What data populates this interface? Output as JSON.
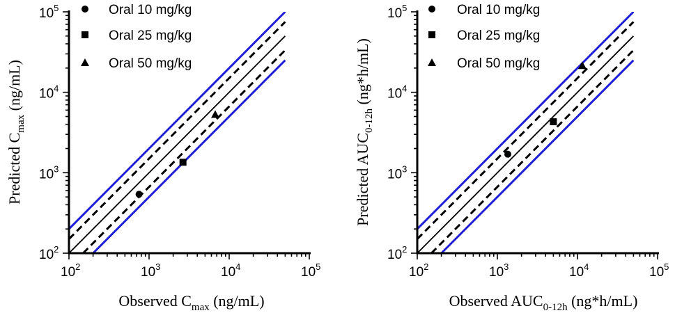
{
  "chart_data": [
    {
      "type": "scatter",
      "scale": "log10",
      "xlabel": "Observed C",
      "xlabel_sub": "max",
      "xlabel_unit": " (ng/mL)",
      "ylabel": "Predicted C",
      "ylabel_sub": "max",
      "ylabel_unit": " (ng/mL)",
      "xlim": [
        100,
        100000
      ],
      "ylim": [
        100,
        100000
      ],
      "tick_base": "10",
      "tick_exponents": [
        "2",
        "3",
        "4",
        "5"
      ],
      "legend_position": "top-left",
      "series": [
        {
          "name": "Oral 10 mg/kg",
          "marker": "circle",
          "x": 750,
          "y": 540
        },
        {
          "name": "Oral 25 mg/kg",
          "marker": "square",
          "x": 2650,
          "y": 1350
        },
        {
          "name": "Oral 50 mg/kg",
          "marker": "triangle",
          "x": 6700,
          "y": 5300
        }
      ],
      "reference_lines": [
        {
          "name": "line of unity",
          "fold": 1,
          "style": "solid",
          "color": "#000000"
        },
        {
          "name": "1.5-fold upper",
          "fold": 1.5,
          "style": "dashed",
          "color": "#000000"
        },
        {
          "name": "1.5-fold lower",
          "fold": 0.6667,
          "style": "dashed",
          "color": "#000000"
        },
        {
          "name": "2-fold upper",
          "fold": 2,
          "style": "solid",
          "color": "#1f1fd8"
        },
        {
          "name": "2-fold lower",
          "fold": 0.5,
          "style": "solid",
          "color": "#1f1fd8"
        }
      ]
    },
    {
      "type": "scatter",
      "scale": "log10",
      "xlabel": "Observed AUC",
      "xlabel_sub": "0-12h",
      "xlabel_unit": " (ng*h/mL)",
      "ylabel": "Predicted AUC",
      "ylabel_sub": "0-12h",
      "ylabel_unit": " (ng*h/mL)",
      "xlim": [
        100,
        100000
      ],
      "ylim": [
        100,
        100000
      ],
      "tick_base": "10",
      "tick_exponents": [
        "2",
        "3",
        "4",
        "5"
      ],
      "legend_position": "top-left",
      "series": [
        {
          "name": "Oral 10 mg/kg",
          "marker": "circle",
          "x": 1350,
          "y": 1700
        },
        {
          "name": "Oral 25 mg/kg",
          "marker": "square",
          "x": 5000,
          "y": 4300
        },
        {
          "name": "Oral 50 mg/kg",
          "marker": "triangle",
          "x": 11500,
          "y": 21500
        }
      ],
      "reference_lines": [
        {
          "name": "line of unity",
          "fold": 1,
          "style": "solid",
          "color": "#000000"
        },
        {
          "name": "1.5-fold upper",
          "fold": 1.5,
          "style": "dashed",
          "color": "#000000"
        },
        {
          "name": "1.5-fold lower",
          "fold": 0.6667,
          "style": "dashed",
          "color": "#000000"
        },
        {
          "name": "2-fold upper",
          "fold": 2,
          "style": "solid",
          "color": "#1f1fd8"
        },
        {
          "name": "2-fold lower",
          "fold": 0.5,
          "style": "solid",
          "color": "#1f1fd8"
        }
      ]
    }
  ]
}
